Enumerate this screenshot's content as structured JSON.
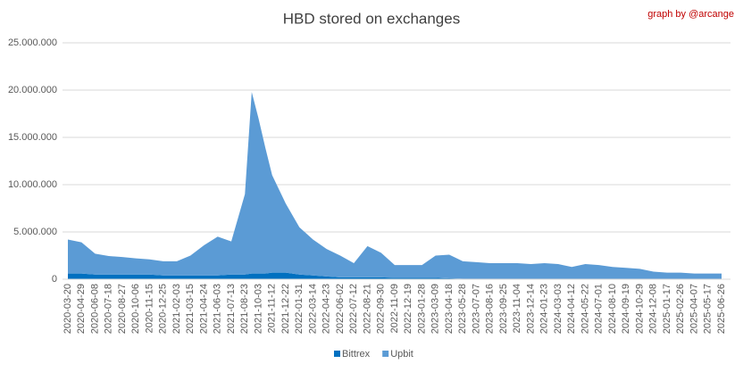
{
  "chart_data": {
    "type": "stacked_area",
    "title": "HBD stored on exchanges",
    "annotation": "graph by @arcange",
    "categories": [
      "2020-03-20",
      "2020-04-29",
      "2020-06-08",
      "2020-07-18",
      "2020-08-27",
      "2020-10-06",
      "2020-11-15",
      "2020-12-25",
      "2021-02-03",
      "2021-03-15",
      "2021-04-24",
      "2021-06-03",
      "2021-07-13",
      "2021-08-23",
      null,
      "2021-10-03",
      null,
      "2021-11-12",
      "2021-12-22",
      "2022-01-31",
      "2022-03-14",
      "2022-04-23",
      "2022-06-02",
      "2022-07-12",
      "2022-08-21",
      "2022-09-30",
      "2022-11-09",
      "2022-12-19",
      "2023-01-28",
      "2023-03-09",
      "2023-04-18",
      "2023-05-28",
      "2023-07-07",
      "2023-08-16",
      "2023-09-25",
      "2023-11-04",
      "2023-12-14",
      "2024-01-23",
      "2024-03-03",
      "2024-04-12",
      "2024-05-22",
      "2024-07-01",
      "2024-08-10",
      "2024-09-19",
      "2024-10-29",
      "2024-12-08",
      "2025-01-17",
      "2025-02-26",
      "2025-04-07",
      "2025-05-17",
      "2025-06-26"
    ],
    "series": [
      {
        "name": "Bittrex",
        "color": "#0070c0",
        "values": [
          600000,
          600000,
          500000,
          500000,
          500000,
          500000,
          500000,
          400000,
          400000,
          400000,
          400000,
          400000,
          500000,
          500000,
          600000,
          600000,
          600000,
          700000,
          700000,
          500000,
          400000,
          300000,
          200000,
          200000,
          200000,
          200000,
          150000,
          150000,
          150000,
          150000,
          100000,
          50000,
          50000,
          50000,
          50000,
          50000,
          50000,
          50000,
          50000,
          50000,
          50000,
          50000,
          50000,
          50000,
          50000,
          50000,
          50000,
          50000,
          50000,
          50000,
          50000
        ]
      },
      {
        "name": "Upbit",
        "color": "#5b9bd5",
        "values": [
          3600000,
          3300000,
          2200000,
          1950000,
          1850000,
          1700000,
          1600000,
          1500000,
          1500000,
          2100000,
          3200000,
          4100000,
          3500000,
          8500000,
          19200000,
          16400000,
          13300000,
          10300000,
          7300000,
          5000000,
          3800000,
          2900000,
          2300000,
          1500000,
          3300000,
          2600000,
          1350000,
          1350000,
          1350000,
          2350000,
          2500000,
          1850000,
          1750000,
          1650000,
          1650000,
          1650000,
          1550000,
          1650000,
          1550000,
          1250000,
          1550000,
          1450000,
          1250000,
          1150000,
          1050000,
          750000,
          650000,
          650000,
          550000,
          550000,
          550000
        ]
      }
    ],
    "ylim": [
      0,
      25000000
    ],
    "yticks": [
      0,
      {
        "value": 5000000,
        "label": "5.000.000"
      },
      {
        "value": 10000000,
        "label": "10.000.000"
      },
      {
        "value": 15000000,
        "label": "15.000.000"
      },
      {
        "value": 20000000,
        "label": "20.000.000"
      },
      {
        "value": 25000000,
        "label": "25.000.000"
      }
    ],
    "grid": true,
    "legend": "bottom"
  }
}
